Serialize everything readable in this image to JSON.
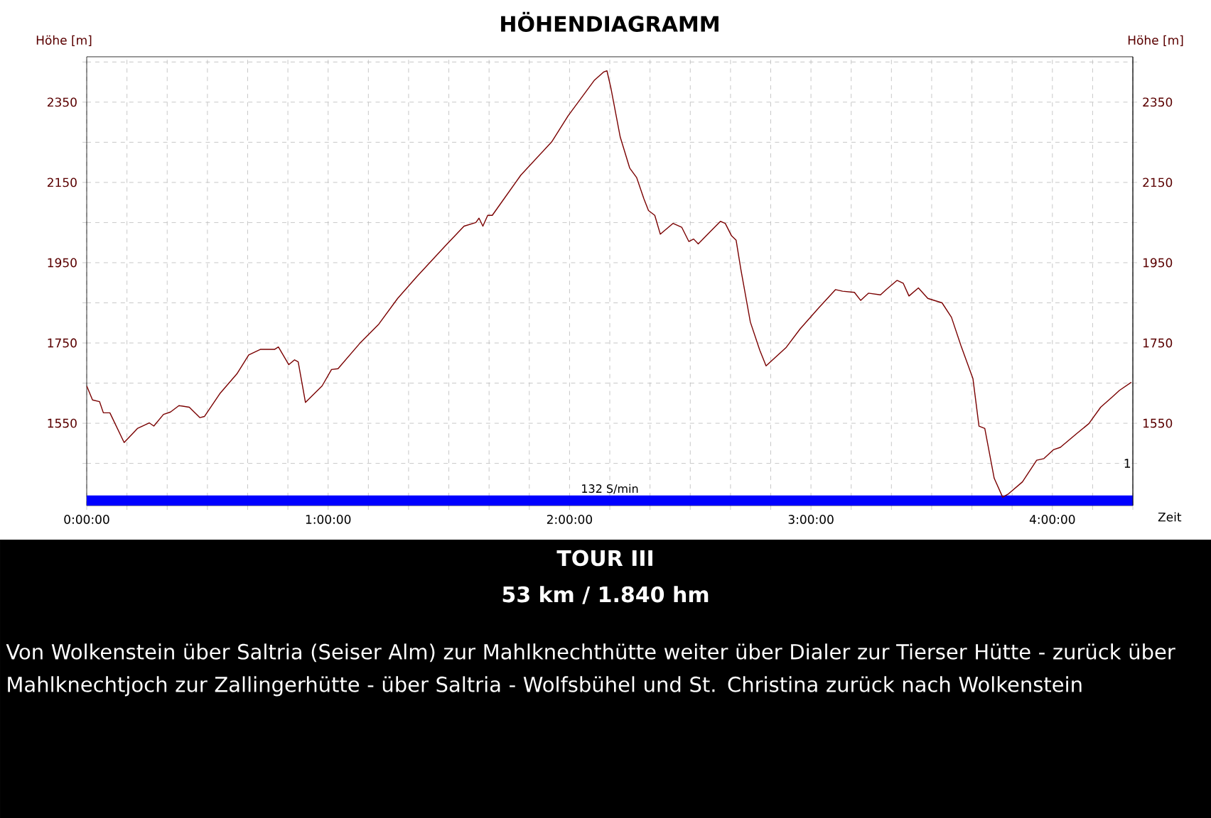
{
  "chart_data": {
    "type": "line",
    "title": "HÖHENDIAGRAMM",
    "xlabel": "Zeit",
    "ylabel": "Höhe [m]",
    "y2label": "Höhe [m]",
    "xlim": [
      0,
      4.3333
    ],
    "ylim": [
      1345,
      2463
    ],
    "y2lim": [
      1345,
      2463
    ],
    "xticks": [
      {
        "value": 0,
        "label": "0:00:00"
      },
      {
        "value": 0.1667,
        "label": null
      },
      {
        "value": 0.3333,
        "label": null
      },
      {
        "value": 0.5,
        "label": null
      },
      {
        "value": 0.6667,
        "label": null
      },
      {
        "value": 0.8333,
        "label": null
      },
      {
        "value": 1,
        "label": "1:00:00"
      },
      {
        "value": 1.1667,
        "label": null
      },
      {
        "value": 1.3333,
        "label": null
      },
      {
        "value": 1.5,
        "label": null
      },
      {
        "value": 1.6667,
        "label": null
      },
      {
        "value": 1.8333,
        "label": null
      },
      {
        "value": 2,
        "label": "2:00:00"
      },
      {
        "value": 2.1667,
        "label": null
      },
      {
        "value": 2.3333,
        "label": null
      },
      {
        "value": 2.5,
        "label": null
      },
      {
        "value": 2.6667,
        "label": null
      },
      {
        "value": 2.8333,
        "label": null
      },
      {
        "value": 3,
        "label": "3:00:00"
      },
      {
        "value": 3.1667,
        "label": null
      },
      {
        "value": 3.3333,
        "label": null
      },
      {
        "value": 3.5,
        "label": null
      },
      {
        "value": 3.6667,
        "label": null
      },
      {
        "value": 3.8333,
        "label": null
      },
      {
        "value": 4,
        "label": "4:00:00"
      },
      {
        "value": 4.1667,
        "label": null
      },
      {
        "value": 4.3333,
        "label": null
      }
    ],
    "yticks": [
      {
        "value": 1450,
        "label": null
      },
      1550,
      {
        "value": 1650,
        "label": null
      },
      1750,
      {
        "value": 1850,
        "label": null
      },
      1950,
      {
        "value": 2050,
        "label": null
      },
      2150,
      {
        "value": 2250,
        "label": null
      },
      2350,
      {
        "value": 2450,
        "label": null
      }
    ],
    "y2ticks": [
      {
        "value": 1450,
        "label": null
      },
      1550,
      {
        "value": 1650,
        "label": null
      },
      1750,
      {
        "value": 1850,
        "label": null
      },
      1950,
      {
        "value": 2050,
        "label": null
      },
      2150,
      {
        "value": 2250,
        "label": null
      },
      2350,
      {
        "value": 2450,
        "label": null
      }
    ],
    "grid": true,
    "bands": [
      {
        "axis": "y",
        "from": 1345,
        "to": 1370,
        "label": "132 S/min",
        "color": "#0000ff"
      }
    ],
    "series": [
      {
        "color": "#7a0000",
        "x": [
          0,
          0.024,
          0.053,
          0.069,
          0.096,
          0.155,
          0.21,
          0.259,
          0.278,
          0.318,
          0.347,
          0.382,
          0.425,
          0.469,
          0.488,
          0.553,
          0.622,
          0.671,
          0.719,
          0.778,
          0.794,
          0.837,
          0.861,
          0.876,
          0.906,
          0.975,
          1.014,
          1.041,
          1.131,
          1.21,
          1.288,
          1.367,
          1.484,
          1.563,
          1.612,
          1.625,
          1.641,
          1.661,
          1.68,
          1.798,
          1.926,
          1.994,
          2.102,
          2.141,
          2.155,
          2.171,
          2.21,
          2.249,
          2.278,
          2.308,
          2.327,
          2.353,
          2.376,
          2.429,
          2.465,
          2.494,
          2.514,
          2.533,
          2.582,
          2.625,
          2.645,
          2.671,
          2.69,
          2.71,
          2.749,
          2.788,
          2.814,
          2.896,
          2.955,
          3.033,
          3.102,
          3.131,
          3.18,
          3.206,
          3.238,
          3.288,
          3.312,
          3.357,
          3.382,
          3.406,
          3.445,
          3.484,
          3.543,
          3.582,
          3.621,
          3.671,
          3.696,
          3.72,
          3.759,
          3.794,
          3.818,
          3.876,
          3.935,
          3.965,
          4.004,
          4.033,
          4.102,
          4.151,
          4.2,
          4.249,
          4.278,
          4.327
        ],
        "values": [
          1643,
          1608,
          1604,
          1576,
          1576,
          1502,
          1537,
          1551,
          1543,
          1572,
          1578,
          1594,
          1590,
          1564,
          1567,
          1625,
          1673,
          1720,
          1734,
          1734,
          1740,
          1696,
          1708,
          1703,
          1602,
          1643,
          1684,
          1686,
          1749,
          1797,
          1861,
          1915,
          1991,
          2041,
          2050,
          2061,
          2041,
          2068,
          2068,
          2168,
          2251,
          2316,
          2404,
          2425,
          2428,
          2386,
          2263,
          2186,
          2162,
          2109,
          2080,
          2068,
          2021,
          2048,
          2038,
          2003,
          2009,
          1997,
          2027,
          2053,
          2048,
          2017,
          2006,
          1932,
          1802,
          1732,
          1693,
          1738,
          1785,
          1838,
          1883,
          1879,
          1876,
          1856,
          1874,
          1870,
          1883,
          1906,
          1899,
          1867,
          1887,
          1861,
          1850,
          1814,
          1744,
          1661,
          1543,
          1537,
          1413,
          1366,
          1374,
          1404,
          1458,
          1462,
          1484,
          1490,
          1525,
          1549,
          1590,
          1616,
          1632,
          1652
        ]
      }
    ],
    "annotations": [
      "TOUR III",
      "53 km / 1.840 hm",
      "Von Wolkenstein über Saltria (Seiser Alm) zur Mahlknechthütte weiter über Dialer zur Tierser Hütte - zurück über Mahlknechtjoch zur Zallingerhütte - über Saltria - Wolfsbühel und St. Christina zurück nach Wolkenstein",
      "1"
    ]
  }
}
